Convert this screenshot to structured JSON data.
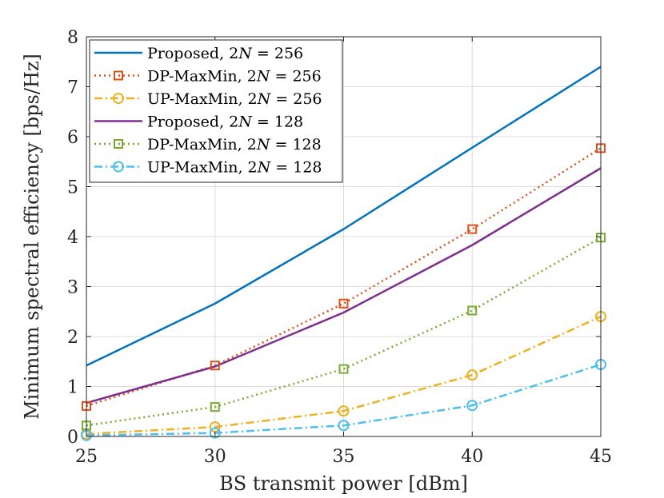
{
  "chart_data": {
    "type": "line",
    "xlabel": "BS transmit power [dBm]",
    "ylabel": "Minimum spectral efficiency [bps/Hz]",
    "xlim": [
      25,
      45
    ],
    "ylim": [
      0,
      8
    ],
    "xticks": [
      "25",
      "30",
      "35",
      "40",
      "45"
    ],
    "yticks": [
      "0",
      "1",
      "2",
      "3",
      "4",
      "5",
      "6",
      "7",
      "8"
    ],
    "grid": true,
    "legend_position": "top-left",
    "x": [
      25,
      30,
      35,
      40,
      45
    ],
    "series": [
      {
        "name": "Proposed, 2N = 256",
        "label_prefix": "Proposed, ",
        "color": "#0072BD",
        "dash": "solid",
        "marker": "none",
        "values": [
          1.42,
          2.66,
          4.15,
          5.78,
          7.4
        ]
      },
      {
        "name": "DP-MaxMin, 2N = 256",
        "label_prefix": "DP-MaxMin, ",
        "color": "#D95319",
        "dash": "dotted",
        "marker": "square",
        "values": [
          0.61,
          1.42,
          2.66,
          4.15,
          5.77
        ]
      },
      {
        "name": "UP-MaxMin, 2N = 256",
        "label_prefix": "UP-MaxMin, ",
        "color": "#EDB120",
        "dash": "dashdot",
        "marker": "circle",
        "values": [
          0.05,
          0.19,
          0.51,
          1.23,
          2.4
        ]
      },
      {
        "name": "Proposed, 2N = 128",
        "label_prefix": "Proposed, ",
        "color": "#7E2F8E",
        "dash": "solid",
        "marker": "none",
        "values": [
          0.67,
          1.4,
          2.48,
          3.83,
          5.37
        ]
      },
      {
        "name": "DP-MaxMin, 2N = 128",
        "label_prefix": "DP-MaxMin, ",
        "color": "#77AC30",
        "dash": "dotted",
        "marker": "square",
        "values": [
          0.22,
          0.59,
          1.35,
          2.52,
          3.98
        ]
      },
      {
        "name": "UP-MaxMin, 2N = 128",
        "label_prefix": "UP-MaxMin, ",
        "color": "#4DBEEE",
        "dash": "dashdot",
        "marker": "circle",
        "values": [
          0.02,
          0.07,
          0.22,
          0.62,
          1.44
        ]
      }
    ],
    "legend_suffixes": [
      "256",
      "256",
      "256",
      "128",
      "128",
      "128"
    ]
  }
}
